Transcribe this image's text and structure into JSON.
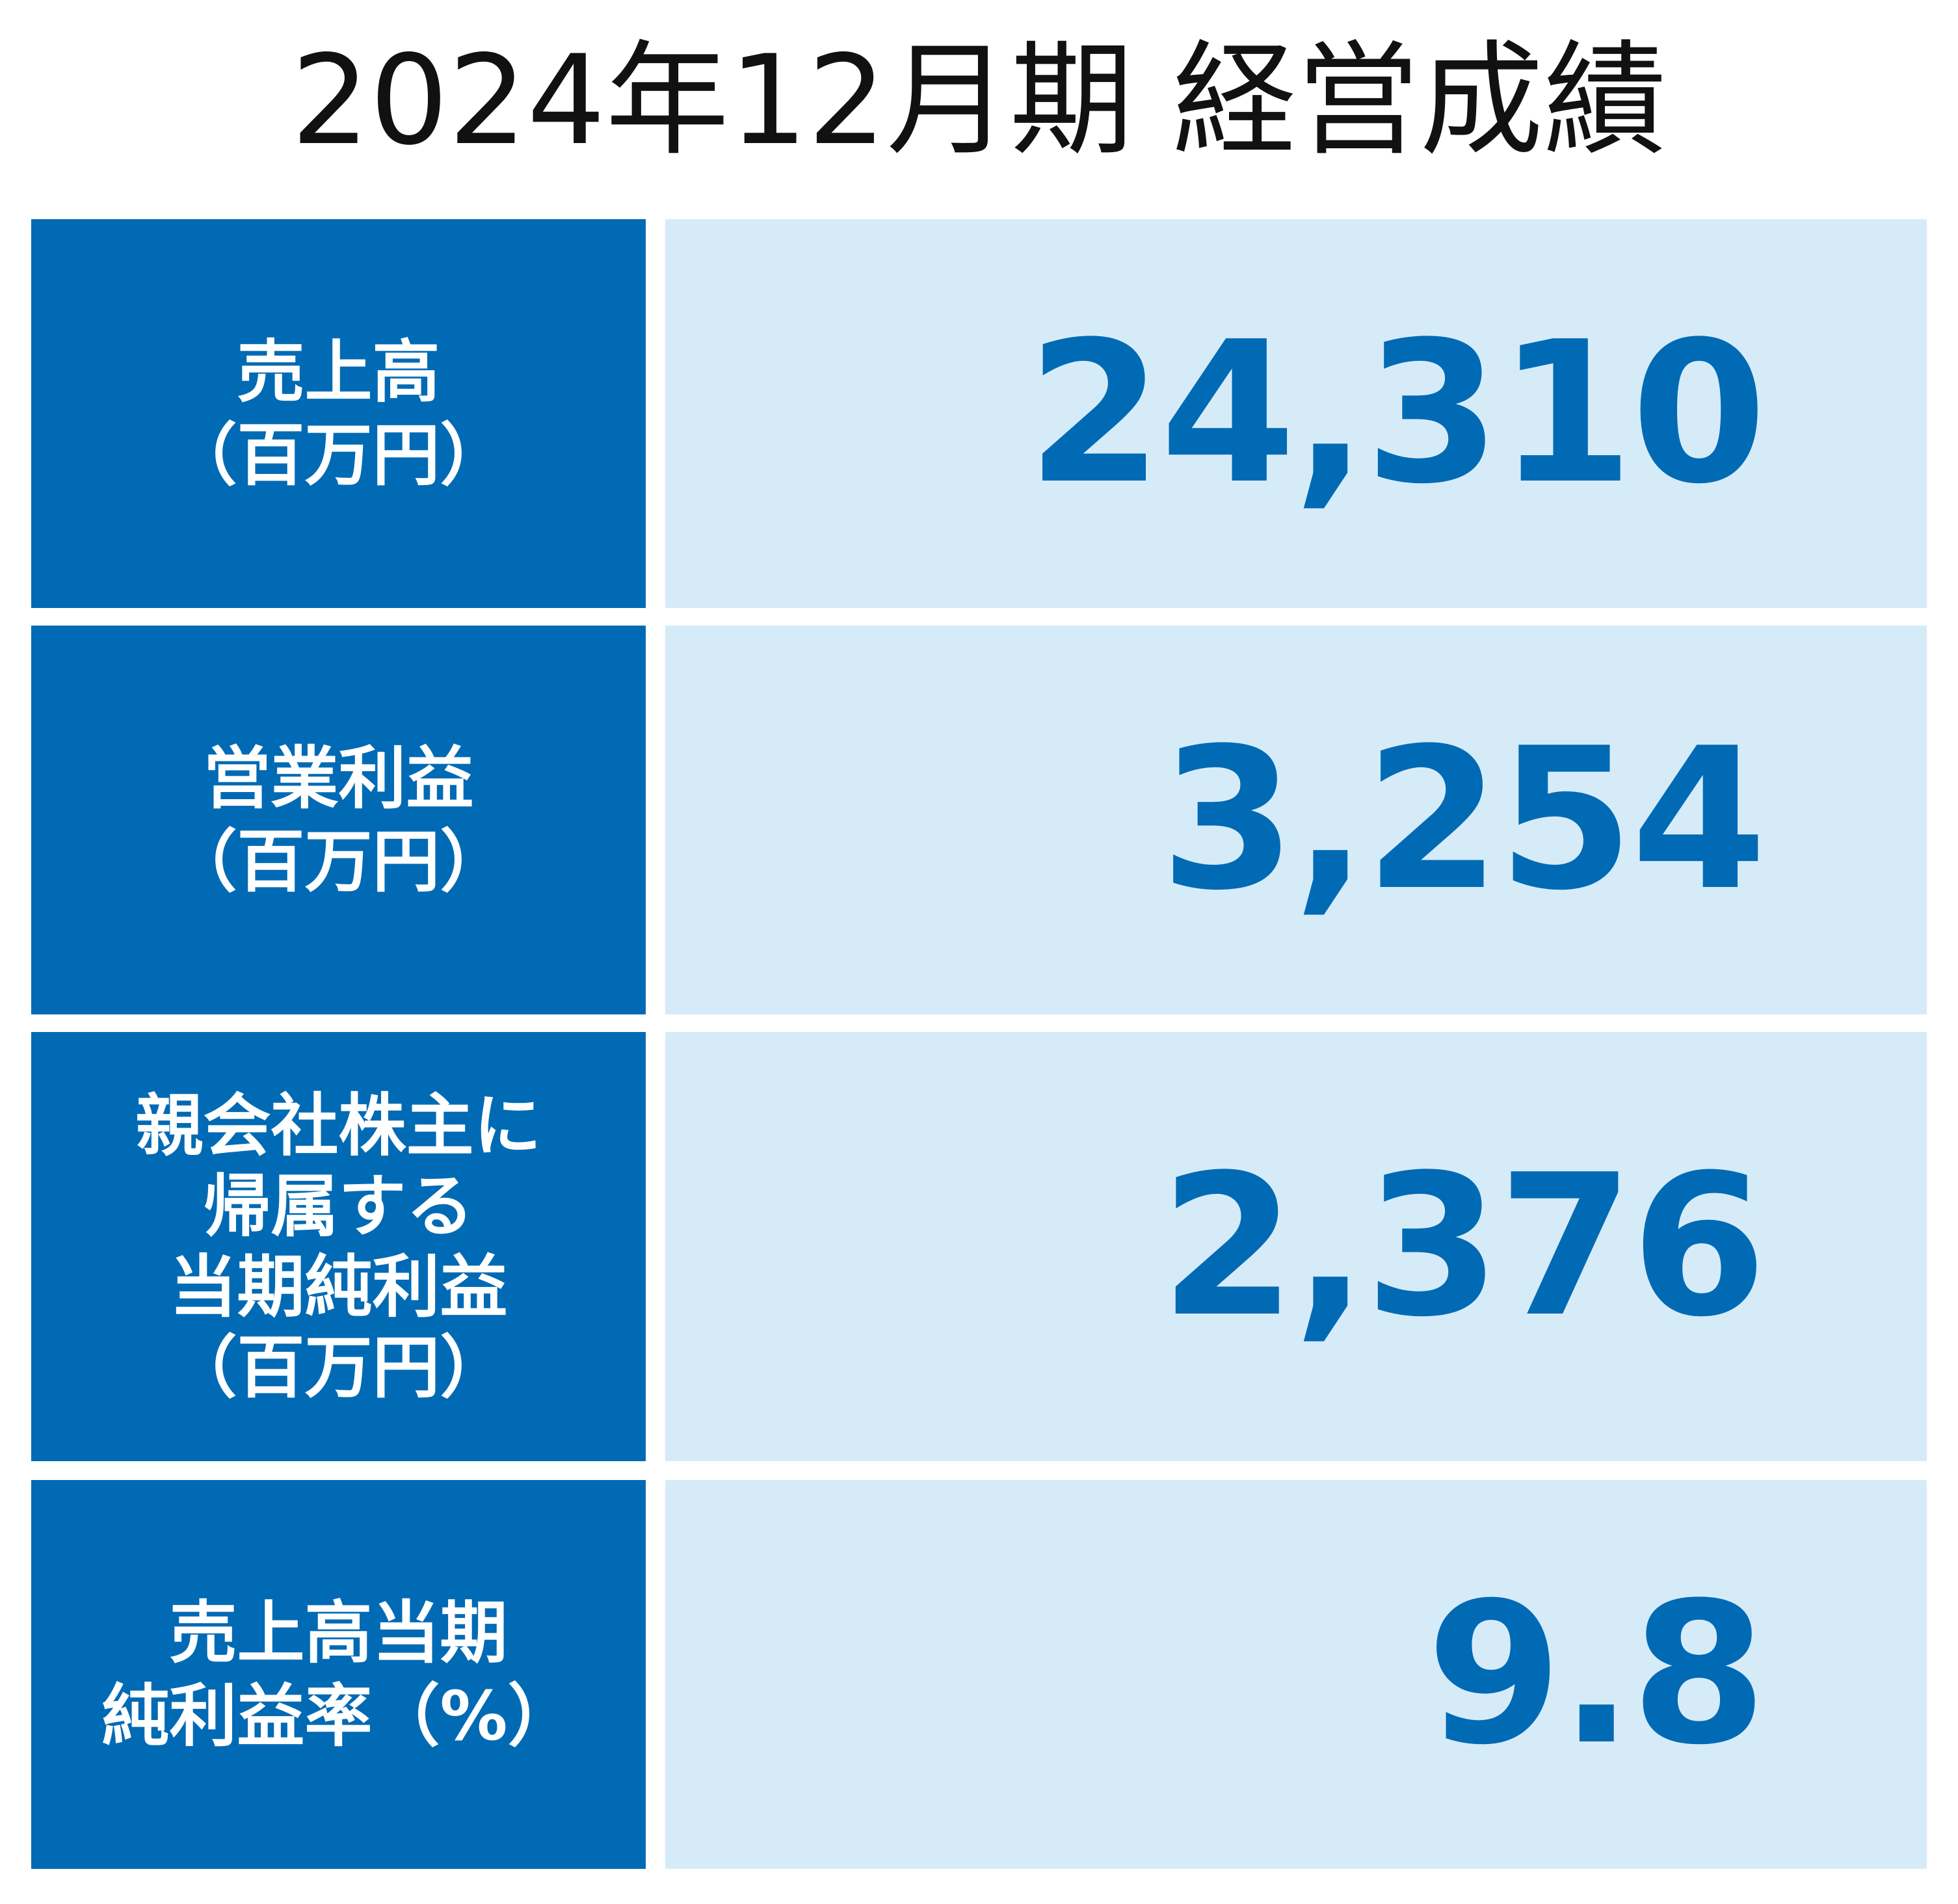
{
  "title": "2024年12月期 経営成績",
  "colors": {
    "label_bg": "#006ab5",
    "value_bg": "#d6ebf8",
    "value_text": "#006ab5",
    "label_text": "#ffffff",
    "title_text": "#111111"
  },
  "rows": [
    {
      "label_lines": [
        "売上高",
        "（百万円）"
      ],
      "value": "24,310"
    },
    {
      "label_lines": [
        "営業利益",
        "（百万円）"
      ],
      "value": "3,254"
    },
    {
      "label_lines": [
        "親会社株主に",
        "帰属する",
        "当期純利益",
        "（百万円）"
      ],
      "value": "2,376"
    },
    {
      "label_lines": [
        "売上高当期",
        "純利益率（%）"
      ],
      "value": "9.8"
    }
  ]
}
